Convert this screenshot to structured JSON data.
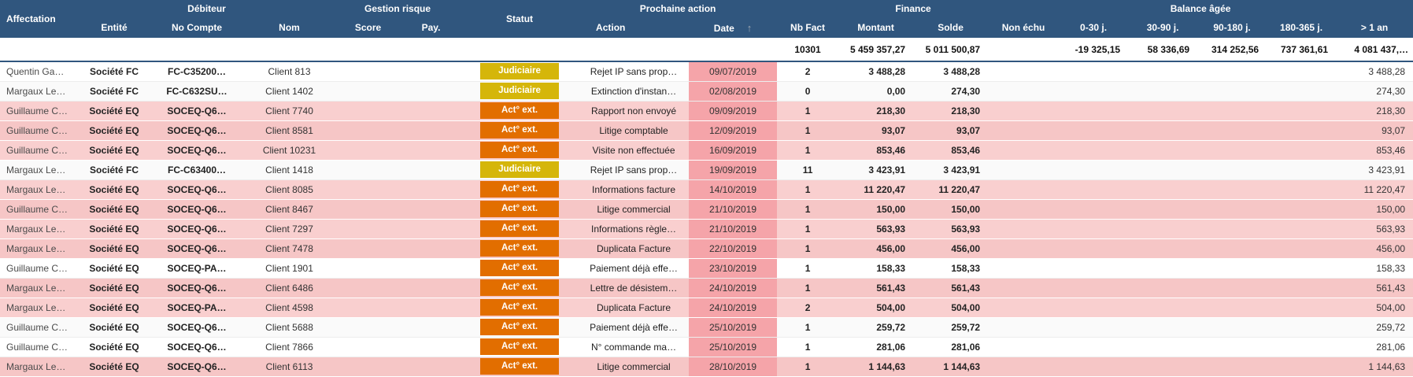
{
  "theme": {
    "header_bg": "#30567E",
    "header_text": "#FFFFFF",
    "row_pink": "#F9CFCF",
    "row_pink_alt": "#F6C6C6",
    "row_light": "#FFFFFF",
    "row_light_alt": "#FAFAFA",
    "date_pink": "#F5A4A9",
    "sort_arrow": "#9EA8B2"
  },
  "header": {
    "groups": {
      "debiteur": "Débiteur",
      "gestion_risque": "Gestion risque",
      "prochaine_action": "Prochaine action",
      "finance": "Finance",
      "balance_agee": "Balance âgée"
    },
    "columns": {
      "affectation": "Affectation",
      "entite": "Entité",
      "no_compte": "No Compte",
      "nom": "Nom",
      "score": "Score",
      "pay": "Pay.",
      "statut": "Statut",
      "action": "Action",
      "date": "Date",
      "nb_fact": "Nb Fact",
      "montant": "Montant",
      "solde": "Solde",
      "non_echu": "Non échu",
      "d0_30": "0-30 j.",
      "d30_90": "30-90 j.",
      "d90_180": "90-180 j.",
      "d180_365": "180-365 j.",
      "over_1y": "> 1 an"
    },
    "sort": {
      "column": "Date",
      "direction": "ascending",
      "glyph": "↑"
    }
  },
  "summary": {
    "nb_fact": "10301",
    "montant": "5 459 357,27",
    "solde": "5 011 500,87",
    "non_echu": "",
    "d0_30": "-19 325,15",
    "d30_90": "58 336,69",
    "d90_180": "314 252,56",
    "d180_365": "737 361,61",
    "over_1y": "4 081 437,…"
  },
  "statuses": {
    "judiciaire": {
      "label": "Judiciaire",
      "color": "#D5B60A"
    },
    "act_ext": {
      "label": "Act° ext.",
      "color": "#E26E00"
    }
  },
  "rows": [
    {
      "affectation": "Quentin Ga…",
      "entite": "Société FC",
      "no_compte": "FC-C35200…",
      "nom": "Client 813",
      "score": "",
      "pay": "",
      "statut": "judiciaire",
      "action": "Rejet IP sans prop…",
      "date": "09/07/2019",
      "nb_fact": "2",
      "montant": "3 488,28",
      "solde": "3 488,28",
      "non_echu": "",
      "d0_30": "",
      "d30_90": "",
      "d90_180": "",
      "d180_365": "",
      "over_1y": "3 488,28",
      "late": false
    },
    {
      "affectation": "Margaux Le…",
      "entite": "Société FC",
      "no_compte": "FC-C632SU…",
      "nom": "Client 1402",
      "score": "",
      "pay": "",
      "statut": "judiciaire",
      "action": "Extinction d'instan…",
      "date": "02/08/2019",
      "nb_fact": "0",
      "montant": "0,00",
      "solde": "274,30",
      "non_echu": "",
      "d0_30": "",
      "d30_90": "",
      "d90_180": "",
      "d180_365": "",
      "over_1y": "274,30",
      "late": false
    },
    {
      "affectation": "Guillaume C…",
      "entite": "Société EQ",
      "no_compte": "SOCEQ-Q6…",
      "nom": "Client 7740",
      "score": "",
      "pay": "",
      "statut": "act_ext",
      "action": "Rapport non envoyé",
      "date": "09/09/2019",
      "nb_fact": "1",
      "montant": "218,30",
      "solde": "218,30",
      "non_echu": "",
      "d0_30": "",
      "d30_90": "",
      "d90_180": "",
      "d180_365": "",
      "over_1y": "218,30",
      "late": true
    },
    {
      "affectation": "Guillaume C…",
      "entite": "Société EQ",
      "no_compte": "SOCEQ-Q6…",
      "nom": "Client 8581",
      "score": "",
      "pay": "",
      "statut": "act_ext",
      "action": "Litige comptable",
      "date": "12/09/2019",
      "nb_fact": "1",
      "montant": "93,07",
      "solde": "93,07",
      "non_echu": "",
      "d0_30": "",
      "d30_90": "",
      "d90_180": "",
      "d180_365": "",
      "over_1y": "93,07",
      "late": true
    },
    {
      "affectation": "Guillaume C…",
      "entite": "Société EQ",
      "no_compte": "SOCEQ-Q6…",
      "nom": "Client 10231",
      "score": "",
      "pay": "",
      "statut": "act_ext",
      "action": "Visite non effectuée",
      "date": "16/09/2019",
      "nb_fact": "1",
      "montant": "853,46",
      "solde": "853,46",
      "non_echu": "",
      "d0_30": "",
      "d30_90": "",
      "d90_180": "",
      "d180_365": "",
      "over_1y": "853,46",
      "late": true
    },
    {
      "affectation": "Margaux Le…",
      "entite": "Société FC",
      "no_compte": "FC-C63400…",
      "nom": "Client 1418",
      "score": "",
      "pay": "",
      "statut": "judiciaire",
      "action": "Rejet IP sans prop…",
      "date": "19/09/2019",
      "nb_fact": "11",
      "montant": "3 423,91",
      "solde": "3 423,91",
      "non_echu": "",
      "d0_30": "",
      "d30_90": "",
      "d90_180": "",
      "d180_365": "",
      "over_1y": "3 423,91",
      "late": false
    },
    {
      "affectation": "Margaux Le…",
      "entite": "Société EQ",
      "no_compte": "SOCEQ-Q6…",
      "nom": "Client 8085",
      "score": "",
      "pay": "",
      "statut": "act_ext",
      "action": "Informations facture",
      "date": "14/10/2019",
      "nb_fact": "1",
      "montant": "11 220,47",
      "solde": "11 220,47",
      "non_echu": "",
      "d0_30": "",
      "d30_90": "",
      "d90_180": "",
      "d180_365": "",
      "over_1y": "11 220,47",
      "late": true
    },
    {
      "affectation": "Guillaume C…",
      "entite": "Société EQ",
      "no_compte": "SOCEQ-Q6…",
      "nom": "Client 8467",
      "score": "",
      "pay": "",
      "statut": "act_ext",
      "action": "Litige commercial",
      "date": "21/10/2019",
      "nb_fact": "1",
      "montant": "150,00",
      "solde": "150,00",
      "non_echu": "",
      "d0_30": "",
      "d30_90": "",
      "d90_180": "",
      "d180_365": "",
      "over_1y": "150,00",
      "late": true
    },
    {
      "affectation": "Margaux Le…",
      "entite": "Société EQ",
      "no_compte": "SOCEQ-Q6…",
      "nom": "Client 7297",
      "score": "",
      "pay": "",
      "statut": "act_ext",
      "action": "Informations règle…",
      "date": "21/10/2019",
      "nb_fact": "1",
      "montant": "563,93",
      "solde": "563,93",
      "non_echu": "",
      "d0_30": "",
      "d30_90": "",
      "d90_180": "",
      "d180_365": "",
      "over_1y": "563,93",
      "late": true
    },
    {
      "affectation": "Margaux Le…",
      "entite": "Société EQ",
      "no_compte": "SOCEQ-Q6…",
      "nom": "Client 7478",
      "score": "",
      "pay": "",
      "statut": "act_ext",
      "action": "Duplicata Facture",
      "date": "22/10/2019",
      "nb_fact": "1",
      "montant": "456,00",
      "solde": "456,00",
      "non_echu": "",
      "d0_30": "",
      "d30_90": "",
      "d90_180": "",
      "d180_365": "",
      "over_1y": "456,00",
      "late": true
    },
    {
      "affectation": "Guillaume C…",
      "entite": "Société EQ",
      "no_compte": "SOCEQ-PA…",
      "nom": "Client 1901",
      "score": "",
      "pay": "",
      "statut": "act_ext",
      "action": "Paiement déjà effe…",
      "date": "23/10/2019",
      "nb_fact": "1",
      "montant": "158,33",
      "solde": "158,33",
      "non_echu": "",
      "d0_30": "",
      "d30_90": "",
      "d90_180": "",
      "d180_365": "",
      "over_1y": "158,33",
      "late": false
    },
    {
      "affectation": "Margaux Le…",
      "entite": "Société EQ",
      "no_compte": "SOCEQ-Q6…",
      "nom": "Client 6486",
      "score": "",
      "pay": "",
      "statut": "act_ext",
      "action": "Lettre de désistem…",
      "date": "24/10/2019",
      "nb_fact": "1",
      "montant": "561,43",
      "solde": "561,43",
      "non_echu": "",
      "d0_30": "",
      "d30_90": "",
      "d90_180": "",
      "d180_365": "",
      "over_1y": "561,43",
      "late": true
    },
    {
      "affectation": "Margaux Le…",
      "entite": "Société EQ",
      "no_compte": "SOCEQ-PA…",
      "nom": "Client 4598",
      "score": "",
      "pay": "",
      "statut": "act_ext",
      "action": "Duplicata Facture",
      "date": "24/10/2019",
      "nb_fact": "2",
      "montant": "504,00",
      "solde": "504,00",
      "non_echu": "",
      "d0_30": "",
      "d30_90": "",
      "d90_180": "",
      "d180_365": "",
      "over_1y": "504,00",
      "late": true
    },
    {
      "affectation": "Guillaume C…",
      "entite": "Société EQ",
      "no_compte": "SOCEQ-Q6…",
      "nom": "Client 5688",
      "score": "",
      "pay": "",
      "statut": "act_ext",
      "action": "Paiement déjà effe…",
      "date": "25/10/2019",
      "nb_fact": "1",
      "montant": "259,72",
      "solde": "259,72",
      "non_echu": "",
      "d0_30": "",
      "d30_90": "",
      "d90_180": "",
      "d180_365": "",
      "over_1y": "259,72",
      "late": false
    },
    {
      "affectation": "Guillaume C…",
      "entite": "Société EQ",
      "no_compte": "SOCEQ-Q6…",
      "nom": "Client 7866",
      "score": "",
      "pay": "",
      "statut": "act_ext",
      "action": "N° commande ma…",
      "date": "25/10/2019",
      "nb_fact": "1",
      "montant": "281,06",
      "solde": "281,06",
      "non_echu": "",
      "d0_30": "",
      "d30_90": "",
      "d90_180": "",
      "d180_365": "",
      "over_1y": "281,06",
      "late": false
    },
    {
      "affectation": "Margaux Le…",
      "entite": "Société EQ",
      "no_compte": "SOCEQ-Q6…",
      "nom": "Client 6113",
      "score": "",
      "pay": "",
      "statut": "act_ext",
      "action": "Litige commercial",
      "date": "28/10/2019",
      "nb_fact": "1",
      "montant": "1 144,63",
      "solde": "1 144,63",
      "non_echu": "",
      "d0_30": "",
      "d30_90": "",
      "d90_180": "",
      "d180_365": "",
      "over_1y": "1 144,63",
      "late": true
    }
  ]
}
